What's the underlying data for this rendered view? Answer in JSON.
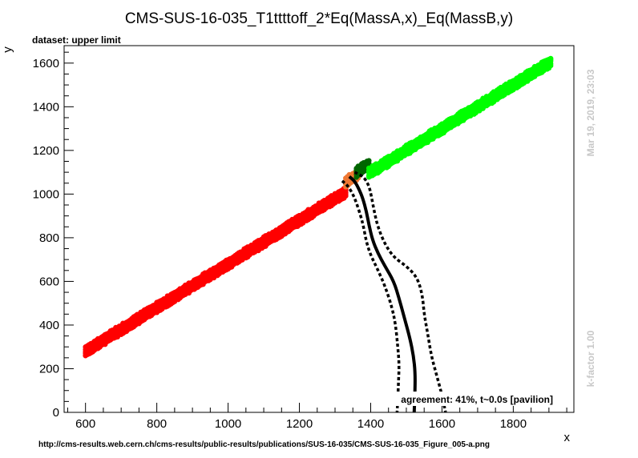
{
  "chart_data": {
    "type": "scatter",
    "title": "CMS-SUS-16-035_T1ttttoff_2*Eq(MassA,x)_Eq(MassB,y)",
    "subtitle": "dataset: upper limit",
    "xlabel": "x",
    "ylabel": "y",
    "xlim": [
      540,
      1970
    ],
    "ylim": [
      0,
      1680
    ],
    "xticks": [
      600,
      800,
      1000,
      1200,
      1400,
      1600,
      1800
    ],
    "yticks": [
      0,
      200,
      400,
      600,
      800,
      1000,
      1200,
      1400,
      1600
    ],
    "side_texts": {
      "date": "Mar 19, 2019, 23:03",
      "kfactor": "k-factor 1.00"
    },
    "agreement": "agreement: 41%, t~0.0s [pavilion]",
    "url": "http://cms-results.web.cern.ch/cms-results/public-results/publications/SUS-16-035/CMS-SUS-16-035_Figure_005-a.png",
    "colors": {
      "excluded": "#ff0000",
      "allowed": "#00ff00",
      "boundary_excluded": "#ee7733",
      "boundary_allowed": "#006600",
      "contour": "#000000"
    },
    "point_bands": [
      {
        "name": "excluded",
        "color": "#ff0000",
        "x_start": 600,
        "x_end": 1330,
        "offset": -320
      },
      {
        "name": "boundary-excluded",
        "color": "#ee7733",
        "x_start": 1330,
        "x_end": 1365,
        "offset": -275
      },
      {
        "name": "boundary-allowed",
        "color": "#006600",
        "x_start": 1360,
        "x_end": 1395,
        "offset": -260
      },
      {
        "name": "allowed",
        "color": "#00ff00",
        "x_start": 1395,
        "x_end": 1905,
        "offset": -300
      }
    ],
    "contours": [
      {
        "name": "expected-minus",
        "style": "dashed",
        "x": [
          1320,
          1335,
          1350,
          1360,
          1372,
          1380,
          1388,
          1400,
          1418,
          1440,
          1460,
          1470,
          1476,
          1480,
          1478,
          1476,
          1474
        ],
        "y": [
          1060,
          1040,
          1000,
          960,
          900,
          850,
          780,
          720,
          660,
          580,
          480,
          400,
          300,
          220,
          140,
          60,
          0
        ]
      },
      {
        "name": "observed",
        "style": "solid",
        "x": [
          1340,
          1355,
          1368,
          1378,
          1388,
          1395,
          1405,
          1420,
          1440,
          1465,
          1480,
          1495,
          1510,
          1520,
          1525,
          1524,
          1522
        ],
        "y": [
          1080,
          1060,
          1020,
          980,
          920,
          860,
          790,
          730,
          670,
          600,
          520,
          430,
          340,
          260,
          180,
          80,
          0
        ]
      },
      {
        "name": "expected-plus",
        "style": "dashed",
        "x": [
          1355,
          1380,
          1395,
          1402,
          1410,
          1420,
          1440,
          1465,
          1500,
          1530,
          1545,
          1550,
          1560,
          1570,
          1585,
          1600,
          1610
        ],
        "y": [
          1100,
          1080,
          1040,
          990,
          920,
          850,
          770,
          710,
          670,
          620,
          540,
          450,
          360,
          260,
          170,
          80,
          0
        ]
      }
    ]
  }
}
